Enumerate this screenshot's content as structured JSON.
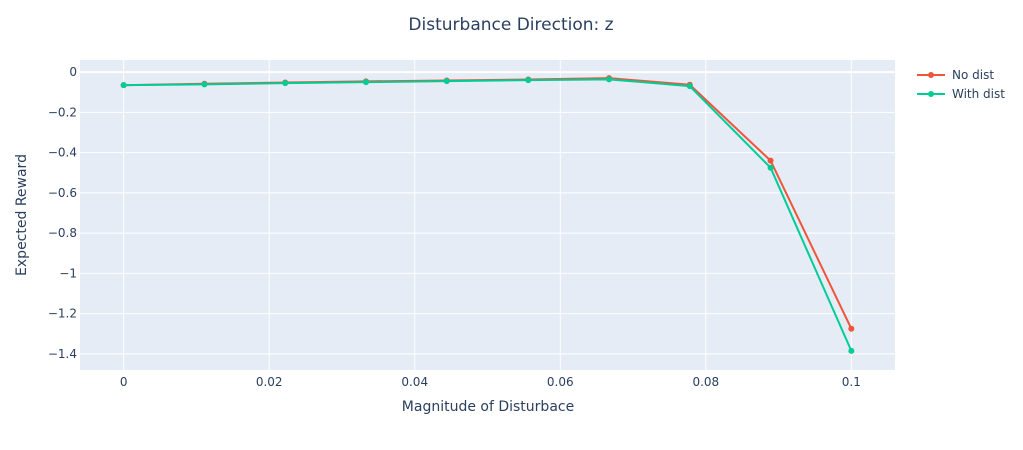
{
  "chart_data": {
    "type": "line",
    "title": "Disturbance Direction: z",
    "xlabel": "Magnitude of Disturbace",
    "ylabel": "Expected Reward",
    "xlim": [
      -0.006,
      0.106
    ],
    "ylim": [
      -1.48,
      0.06
    ],
    "x_ticks": [
      0,
      0.02,
      0.04,
      0.06,
      0.08,
      0.1
    ],
    "x_tick_labels": [
      "0",
      "0.02",
      "0.04",
      "0.06",
      "0.08",
      "0.1"
    ],
    "y_ticks": [
      0,
      -0.2,
      -0.4,
      -0.6,
      -0.8,
      -1,
      -1.2,
      -1.4
    ],
    "y_tick_labels": [
      "0",
      "−0.2",
      "−0.4",
      "−0.6",
      "−0.8",
      "−1",
      "−1.2",
      "−1.4"
    ],
    "grid": true,
    "legend_position": "top-right",
    "x": [
      0,
      0.0111,
      0.0222,
      0.0333,
      0.0444,
      0.0556,
      0.0667,
      0.0778,
      0.0889,
      0.1
    ],
    "series": [
      {
        "name": "No dist",
        "color": "#ef553b",
        "values": [
          -0.065,
          -0.058,
          -0.052,
          -0.046,
          -0.042,
          -0.037,
          -0.03,
          -0.063,
          -0.44,
          -1.275
        ]
      },
      {
        "name": "With dist",
        "color": "#00cc96",
        "values": [
          -0.065,
          -0.061,
          -0.055,
          -0.05,
          -0.045,
          -0.04,
          -0.036,
          -0.07,
          -0.475,
          -1.385
        ]
      }
    ]
  }
}
